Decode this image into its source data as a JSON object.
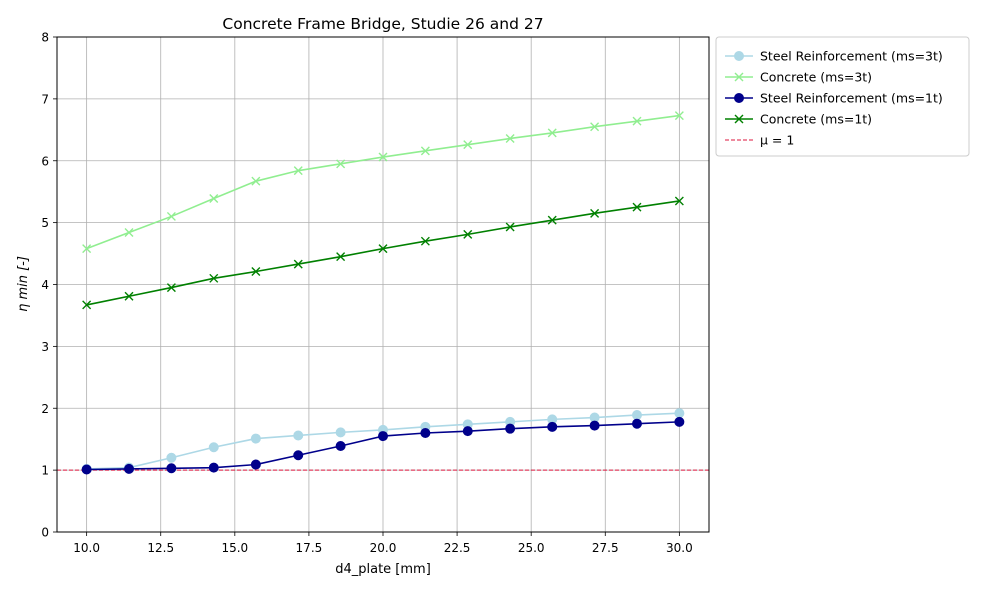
{
  "chart_data": {
    "type": "line",
    "title": "Concrete Frame Bridge, Studie 26 and 27",
    "xlabel": "d4_plate [mm]",
    "ylabel": "η min [-]",
    "xlim": [
      9,
      31
    ],
    "ylim": [
      0,
      8
    ],
    "xticks": [
      "10.0",
      "12.5",
      "15.0",
      "17.5",
      "20.0",
      "22.5",
      "25.0",
      "27.5",
      "30.0"
    ],
    "yticks": [
      "0",
      "1",
      "2",
      "3",
      "4",
      "5",
      "6",
      "7",
      "8"
    ],
    "grid": true,
    "legend_position": "outside-right-top",
    "x": [
      10.0,
      11.43,
      12.86,
      14.29,
      15.71,
      17.14,
      18.57,
      20.0,
      21.43,
      22.86,
      24.29,
      25.71,
      27.14,
      28.57,
      30.0
    ],
    "series": [
      {
        "name": "Steel Reinforcement (ms=3t)",
        "color": "#add8e6",
        "marker": "circle",
        "values": [
          1.02,
          1.04,
          1.2,
          1.37,
          1.51,
          1.56,
          1.61,
          1.65,
          1.7,
          1.74,
          1.78,
          1.82,
          1.85,
          1.89,
          1.92
        ]
      },
      {
        "name": "Concrete (ms=3t)",
        "color": "#90ee90",
        "marker": "x",
        "values": [
          4.58,
          4.84,
          5.1,
          5.39,
          5.67,
          5.84,
          5.95,
          6.06,
          6.16,
          6.26,
          6.36,
          6.45,
          6.55,
          6.64,
          6.73
        ]
      },
      {
        "name": "Steel Reinforcement (ms=1t)",
        "color": "#00008b",
        "marker": "circle",
        "values": [
          1.01,
          1.02,
          1.03,
          1.04,
          1.09,
          1.24,
          1.39,
          1.55,
          1.6,
          1.63,
          1.67,
          1.7,
          1.72,
          1.75,
          1.78
        ]
      },
      {
        "name": "Concrete (ms=1t)",
        "color": "#008000",
        "marker": "x",
        "values": [
          3.67,
          3.81,
          3.95,
          4.1,
          4.21,
          4.33,
          4.45,
          4.58,
          4.7,
          4.81,
          4.93,
          5.04,
          5.15,
          5.25,
          5.35
        ]
      }
    ],
    "reference_line": {
      "name": "μ = 1",
      "value": 1,
      "color": "#dc143c",
      "style": "dashed"
    }
  }
}
